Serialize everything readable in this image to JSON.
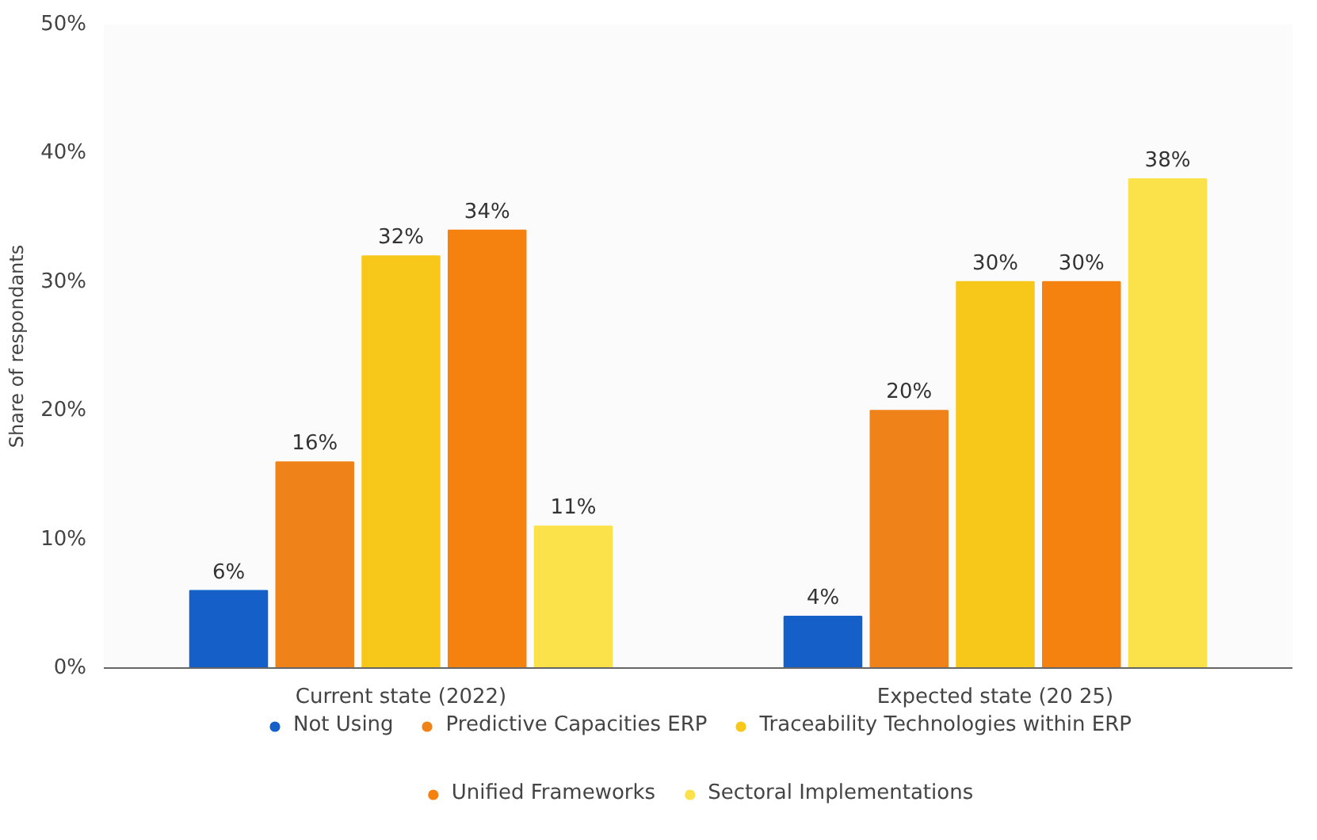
{
  "chart_data": {
    "type": "bar",
    "ylabel": "Share of respondants",
    "categories": [
      "Current state (2022)",
      "Expected state (20 25)"
    ],
    "series": [
      {
        "name": "Not Using",
        "color": "#1560c8",
        "values": [
          6,
          4
        ],
        "value_labels": [
          "6%",
          "4%"
        ]
      },
      {
        "name": "Predictive Capacities ERP",
        "color": "#f0821a",
        "values": [
          16,
          20
        ],
        "value_labels": [
          "16%",
          "20%"
        ]
      },
      {
        "name": "Traceability Technologies within ERP",
        "color": "#f7c81a",
        "values": [
          32,
          30
        ],
        "value_labels": [
          "32%",
          "30%"
        ]
      },
      {
        "name": "Unified Frameworks",
        "color": "#f5820f",
        "values": [
          34,
          30
        ],
        "value_labels": [
          "34%",
          "30%"
        ]
      },
      {
        "name": "Sectoral Implementations",
        "color": "#fbe24a",
        "values": [
          11,
          38
        ],
        "value_labels": [
          "11%",
          "38%"
        ]
      }
    ],
    "ylim": [
      0,
      50
    ],
    "yticks": [
      {
        "value": 0,
        "label": "0%"
      },
      {
        "value": 10,
        "label": "10%"
      },
      {
        "value": 20,
        "label": "20%"
      },
      {
        "value": 30,
        "label": "30%"
      },
      {
        "value": 40,
        "label": "40%"
      },
      {
        "value": 50,
        "label": "50%"
      }
    ],
    "grid": false,
    "legend": "bottom"
  }
}
